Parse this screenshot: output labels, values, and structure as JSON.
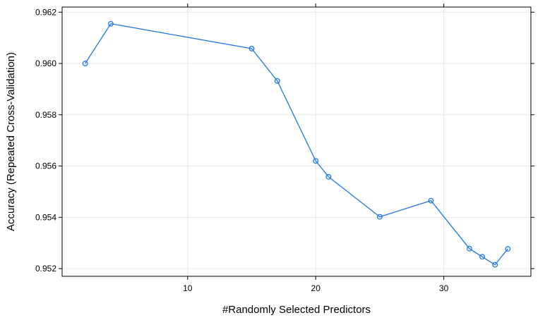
{
  "chart_data": {
    "type": "line",
    "title": "",
    "xlabel": "#Randomly Selected Predictors",
    "ylabel": "Accuracy (Repeated Cross-Validation)",
    "xlim": [
      0.2,
      36.8
    ],
    "ylim": [
      0.9517,
      0.9622
    ],
    "xticks": [
      10,
      20,
      30
    ],
    "xtick_labels": [
      "10",
      "20",
      "30"
    ],
    "yticks": [
      0.952,
      0.954,
      0.956,
      0.958,
      0.96,
      0.962
    ],
    "ytick_labels": [
      "0.952",
      "0.954",
      "0.956",
      "0.958",
      "0.960",
      "0.962"
    ],
    "grid": true,
    "series": [
      {
        "color": "#1f78e6",
        "marker": "open-circle",
        "x": [
          2,
          4,
          15,
          17,
          20,
          21,
          25,
          29,
          32,
          33,
          34,
          35
        ],
        "y": [
          0.96,
          0.96155,
          0.96058,
          0.95932,
          0.9562,
          0.95558,
          0.95402,
          0.95465,
          0.95278,
          0.95246,
          0.95215,
          0.95277
        ]
      }
    ]
  }
}
